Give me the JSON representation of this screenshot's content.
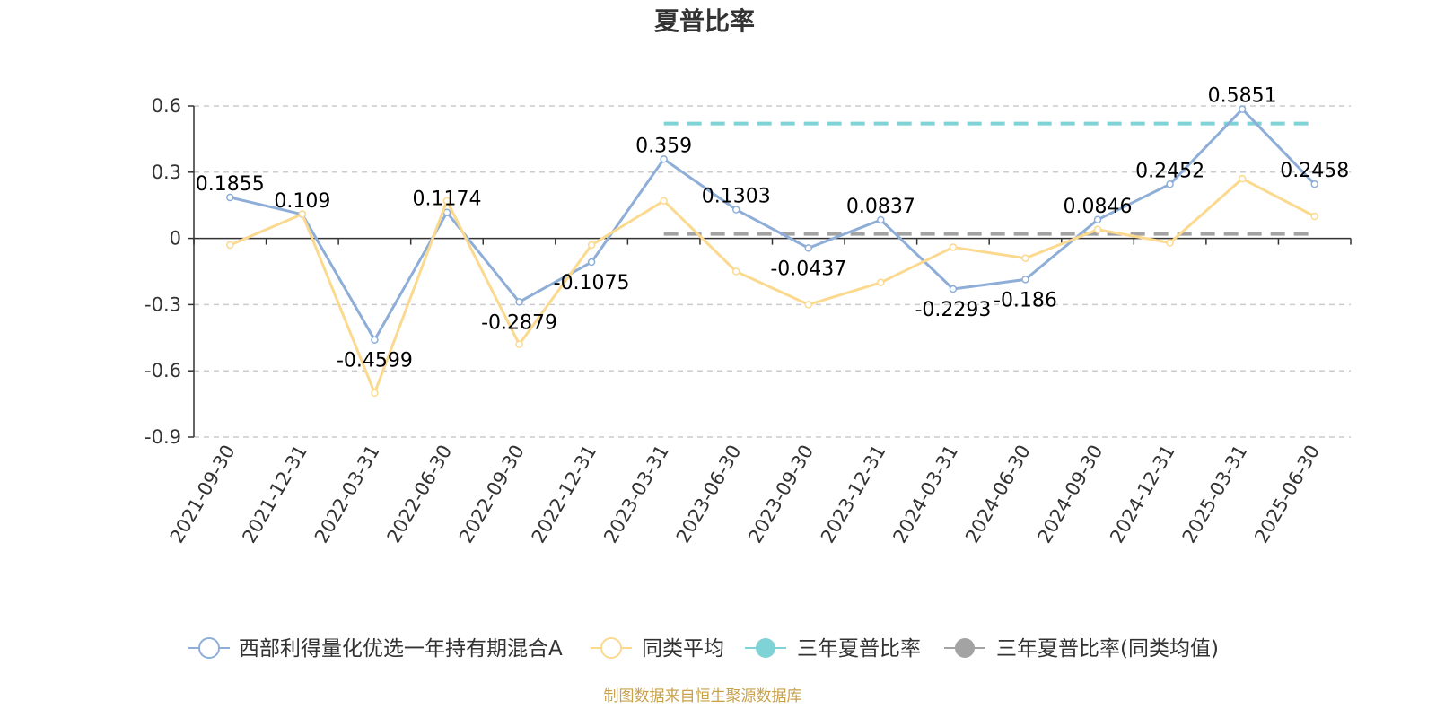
{
  "chart_data": {
    "type": "line",
    "title": "夏普比率",
    "categories": [
      "2021-09-30",
      "2021-12-31",
      "2022-03-31",
      "2022-06-30",
      "2022-09-30",
      "2022-12-31",
      "2023-03-31",
      "2023-06-30",
      "2023-09-30",
      "2023-12-31",
      "2024-03-31",
      "2024-06-30",
      "2024-09-30",
      "2024-12-31",
      "2025-03-31",
      "2025-06-30"
    ],
    "series": [
      {
        "name": "西部利得量化优选一年持有期混合A",
        "color": "#8eaed8",
        "values": [
          0.1855,
          0.109,
          -0.4599,
          0.1174,
          -0.2879,
          -0.1075,
          0.359,
          0.1303,
          -0.0437,
          0.0837,
          -0.2293,
          -0.186,
          0.0846,
          0.2452,
          0.5851,
          0.2458
        ],
        "labels": [
          "0.1855",
          "0.109",
          "-0.4599",
          "0.1174",
          "-0.2879",
          "-0.1075",
          "0.359",
          "0.1303",
          "-0.0437",
          "0.0837",
          "-0.2293",
          "-0.186",
          "0.0846",
          "0.2452",
          "0.5851",
          "0.2458"
        ]
      },
      {
        "name": "同类平均",
        "color": "#fbd98f",
        "values": [
          -0.03,
          0.11,
          -0.7,
          0.17,
          -0.48,
          -0.03,
          0.17,
          -0.15,
          -0.3,
          -0.2,
          -0.04,
          -0.09,
          0.04,
          -0.02,
          0.27,
          0.1
        ]
      },
      {
        "name": "三年夏普比率",
        "color": "#7fd3d6",
        "dashed": true,
        "value": 0.52,
        "from": "2023-03-31",
        "to": "2025-06-30"
      },
      {
        "name": "三年夏普比率(同类均值)",
        "color": "#a3a3a3",
        "dashed": true,
        "value": 0.02,
        "from": "2023-03-31",
        "to": "2025-06-30"
      }
    ],
    "yticks": [
      "0.6",
      "0.3",
      "0",
      "-0.3",
      "-0.6",
      "-0.9"
    ],
    "ylim": [
      -0.9,
      0.6
    ],
    "grid": true,
    "legend_position": "bottom-center"
  },
  "source_note": "制图数据来自恒生聚源数据库"
}
